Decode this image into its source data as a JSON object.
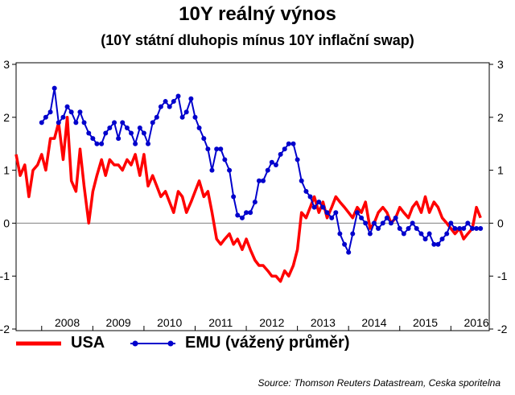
{
  "chart_data": {
    "type": "line",
    "title": "10Y reálný výnos",
    "subtitle": "(10Y státní dluhopis mínus 10Y inflační swap)",
    "yticks": [
      "3",
      "2",
      "1",
      "0",
      "-1",
      "-2"
    ],
    "ylim": [
      -2,
      3
    ],
    "xlim": [
      2007.5,
      2016.75
    ],
    "xtick_labels": [
      "2008",
      "2009",
      "2010",
      "2011",
      "2012",
      "2013",
      "2014",
      "2015",
      "2016"
    ],
    "grid": false,
    "legend_position": "bottom",
    "series": [
      {
        "name": "USA",
        "color": "#ff0000",
        "marker": false,
        "x": [
          2007.5,
          2007.58,
          2007.67,
          2007.75,
          2007.83,
          2007.92,
          2008.0,
          2008.08,
          2008.17,
          2008.25,
          2008.33,
          2008.42,
          2008.5,
          2008.58,
          2008.67,
          2008.75,
          2008.83,
          2008.92,
          2009.0,
          2009.08,
          2009.17,
          2009.25,
          2009.33,
          2009.42,
          2009.5,
          2009.58,
          2009.67,
          2009.75,
          2009.83,
          2009.92,
          2010.0,
          2010.08,
          2010.17,
          2010.25,
          2010.33,
          2010.42,
          2010.5,
          2010.58,
          2010.67,
          2010.75,
          2010.83,
          2010.92,
          2011.0,
          2011.08,
          2011.17,
          2011.25,
          2011.33,
          2011.42,
          2011.5,
          2011.58,
          2011.67,
          2011.75,
          2011.83,
          2011.92,
          2012.0,
          2012.08,
          2012.17,
          2012.25,
          2012.33,
          2012.42,
          2012.5,
          2012.58,
          2012.67,
          2012.75,
          2012.83,
          2012.92,
          2013.0,
          2013.08,
          2013.17,
          2013.25,
          2013.33,
          2013.42,
          2013.5,
          2013.58,
          2013.67,
          2013.75,
          2013.83,
          2013.92,
          2014.0,
          2014.08,
          2014.17,
          2014.25,
          2014.33,
          2014.42,
          2014.5,
          2014.58,
          2014.67,
          2014.75,
          2014.83,
          2014.92,
          2015.0,
          2015.08,
          2015.17,
          2015.25,
          2015.33,
          2015.42,
          2015.5,
          2015.58,
          2015.67,
          2015.75,
          2015.83,
          2015.92,
          2016.0,
          2016.08,
          2016.17,
          2016.25,
          2016.33,
          2016.42,
          2016.5,
          2016.58
        ],
        "y": [
          1.3,
          0.9,
          1.1,
          0.5,
          1.0,
          1.1,
          1.3,
          1.0,
          1.6,
          1.6,
          1.9,
          1.2,
          2.0,
          0.8,
          0.6,
          1.4,
          0.7,
          0.0,
          0.6,
          0.9,
          1.2,
          0.9,
          1.2,
          1.1,
          1.1,
          1.0,
          1.2,
          1.1,
          1.3,
          0.9,
          1.3,
          0.7,
          0.9,
          0.7,
          0.5,
          0.6,
          0.4,
          0.2,
          0.6,
          0.5,
          0.2,
          0.4,
          0.6,
          0.8,
          0.5,
          0.6,
          0.2,
          -0.3,
          -0.4,
          -0.3,
          -0.2,
          -0.4,
          -0.3,
          -0.5,
          -0.3,
          -0.5,
          -0.7,
          -0.8,
          -0.8,
          -0.9,
          -1.0,
          -1.0,
          -1.1,
          -0.9,
          -1.0,
          -0.8,
          -0.5,
          0.2,
          0.1,
          0.3,
          0.5,
          0.2,
          0.4,
          0.1,
          0.3,
          0.5,
          0.4,
          0.3,
          0.2,
          0.1,
          0.3,
          0.2,
          0.4,
          -0.1,
          0.0,
          0.2,
          0.3,
          0.2,
          0.0,
          0.1,
          0.3,
          0.2,
          0.1,
          0.3,
          0.4,
          0.2,
          0.5,
          0.2,
          0.4,
          0.3,
          0.1,
          0.0,
          -0.1,
          -0.2,
          -0.1,
          -0.3,
          -0.2,
          -0.1,
          0.3,
          0.1
        ]
      },
      {
        "name": "EMU (vážený průměr)",
        "color": "#0000cc",
        "marker": true,
        "x": [
          2008.0,
          2008.08,
          2008.17,
          2008.25,
          2008.33,
          2008.42,
          2008.5,
          2008.58,
          2008.67,
          2008.75,
          2008.83,
          2008.92,
          2009.0,
          2009.08,
          2009.17,
          2009.25,
          2009.33,
          2009.42,
          2009.5,
          2009.58,
          2009.67,
          2009.75,
          2009.83,
          2009.92,
          2010.0,
          2010.08,
          2010.17,
          2010.25,
          2010.33,
          2010.42,
          2010.5,
          2010.58,
          2010.67,
          2010.75,
          2010.83,
          2010.92,
          2011.0,
          2011.08,
          2011.17,
          2011.25,
          2011.33,
          2011.42,
          2011.5,
          2011.58,
          2011.67,
          2011.75,
          2011.83,
          2011.92,
          2012.0,
          2012.08,
          2012.17,
          2012.25,
          2012.33,
          2012.42,
          2012.5,
          2012.58,
          2012.67,
          2012.75,
          2012.83,
          2012.92,
          2013.0,
          2013.08,
          2013.17,
          2013.25,
          2013.33,
          2013.42,
          2013.5,
          2013.58,
          2013.67,
          2013.75,
          2013.83,
          2013.92,
          2014.0,
          2014.08,
          2014.17,
          2014.25,
          2014.33,
          2014.42,
          2014.5,
          2014.58,
          2014.67,
          2014.75,
          2014.83,
          2014.92,
          2015.0,
          2015.08,
          2015.17,
          2015.25,
          2015.33,
          2015.42,
          2015.5,
          2015.58,
          2015.67,
          2015.75,
          2015.83,
          2015.92,
          2016.0,
          2016.08,
          2016.17,
          2016.25,
          2016.33,
          2016.42,
          2016.5,
          2016.58
        ],
        "y": [
          1.9,
          2.0,
          2.1,
          2.55,
          1.9,
          2.0,
          2.2,
          2.1,
          1.9,
          2.1,
          1.9,
          1.7,
          1.6,
          1.5,
          1.5,
          1.7,
          1.8,
          1.9,
          1.6,
          1.9,
          1.8,
          1.7,
          1.5,
          1.8,
          1.7,
          1.5,
          1.9,
          2.0,
          2.2,
          2.3,
          2.2,
          2.3,
          2.4,
          2.0,
          2.1,
          2.35,
          2.0,
          1.8,
          1.6,
          1.4,
          1.0,
          1.4,
          1.4,
          1.2,
          1.0,
          0.5,
          0.15,
          0.1,
          0.2,
          0.2,
          0.4,
          0.8,
          0.8,
          1.0,
          1.15,
          1.1,
          1.3,
          1.4,
          1.5,
          1.5,
          1.2,
          0.8,
          0.6,
          0.5,
          0.3,
          0.4,
          0.3,
          0.2,
          0.1,
          0.2,
          -0.2,
          -0.4,
          -0.55,
          -0.2,
          0.2,
          0.1,
          0.0,
          -0.2,
          0.0,
          -0.1,
          0.0,
          0.1,
          0.0,
          0.1,
          -0.1,
          -0.2,
          -0.1,
          0.0,
          -0.1,
          -0.2,
          -0.3,
          -0.2,
          -0.4,
          -0.4,
          -0.3,
          -0.2,
          0.0,
          -0.1,
          -0.1,
          -0.1,
          0.0,
          -0.1,
          -0.1,
          -0.1
        ]
      }
    ]
  },
  "source": "Source: Thomson Reuters Datastream, Ceska sporitelna"
}
